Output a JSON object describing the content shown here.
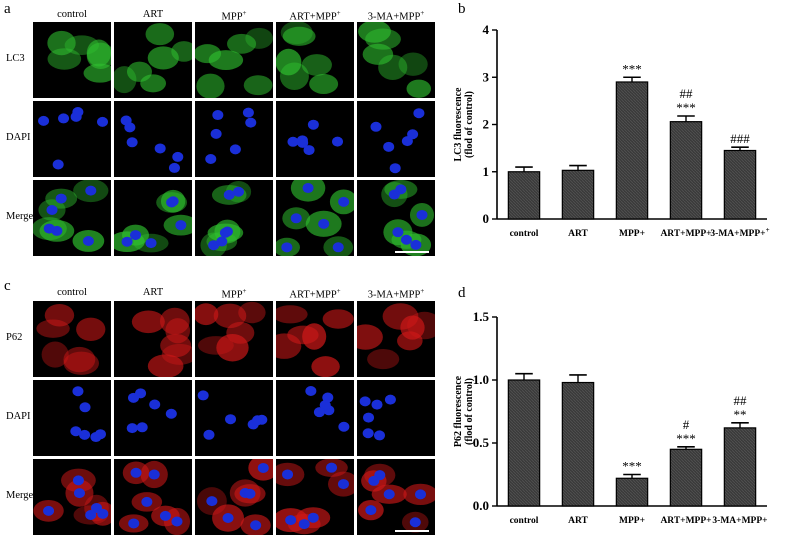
{
  "panel_letters": {
    "a": "a",
    "b": "b",
    "c": "c",
    "d": "d"
  },
  "figure_a": {
    "columns": [
      {
        "main": "control",
        "sup": ""
      },
      {
        "main": "ART",
        "sup": ""
      },
      {
        "main": "MPP",
        "sup": "+"
      },
      {
        "main": "ART+MPP",
        "sup": "+"
      },
      {
        "main": "3-MA+MPP",
        "sup": "+"
      }
    ],
    "rows": [
      "LC3",
      "DAPI",
      "Merge"
    ],
    "stain_color": "#2fbf2f"
  },
  "figure_c": {
    "columns": [
      {
        "main": "control",
        "sup": ""
      },
      {
        "main": "ART",
        "sup": ""
      },
      {
        "main": "MPP",
        "sup": "+"
      },
      {
        "main": "ART+MPP",
        "sup": "+"
      },
      {
        "main": "3-MA+MPP",
        "sup": "+"
      }
    ],
    "rows": [
      "P62",
      "DAPI",
      "Merge"
    ],
    "stain_color": "#d01818"
  },
  "nucleus_color": "#1a2fd8",
  "chart_data": [
    {
      "type": "bar",
      "panel": "b",
      "categories": [
        "control",
        "ART",
        "MPP+",
        "ART+MPP+",
        "3-MA+MPP+"
      ],
      "category_sups": [
        "",
        "",
        "",
        "",
        "+"
      ],
      "values": [
        1.0,
        1.03,
        2.9,
        2.06,
        1.45
      ],
      "errors": [
        0.1,
        0.1,
        0.1,
        0.12,
        0.07
      ],
      "annotations": [
        [],
        [],
        [
          "***"
        ],
        [
          "##",
          "***"
        ],
        [
          "###"
        ]
      ],
      "ylabel_line1": "LC3 fluorescence",
      "ylabel_line2": "(flod of control)",
      "ylim": [
        0,
        4
      ],
      "yticks": [
        0,
        1,
        2,
        3,
        4
      ],
      "ytick_labels": [
        "0",
        "1",
        "2",
        "3",
        "4"
      ],
      "grid": false
    },
    {
      "type": "bar",
      "panel": "d",
      "categories": [
        "control",
        "ART",
        "MPP+",
        "ART+MPP+",
        "3-MA+MPP+"
      ],
      "category_sups": [
        "",
        "",
        "",
        "",
        ""
      ],
      "values": [
        1.0,
        0.98,
        0.22,
        0.45,
        0.62
      ],
      "errors": [
        0.05,
        0.06,
        0.03,
        0.02,
        0.04
      ],
      "annotations": [
        [],
        [],
        [
          "***"
        ],
        [
          "#",
          "***"
        ],
        [
          "##",
          "**"
        ]
      ],
      "ylabel_line1": "P62 fluorescence",
      "ylabel_line2": "(flod of control)",
      "ylim": [
        0,
        1.5
      ],
      "yticks": [
        0,
        0.5,
        1.0,
        1.5
      ],
      "ytick_labels": [
        "0.0",
        "0.5",
        "1.0",
        "1.5"
      ],
      "grid": false
    }
  ]
}
